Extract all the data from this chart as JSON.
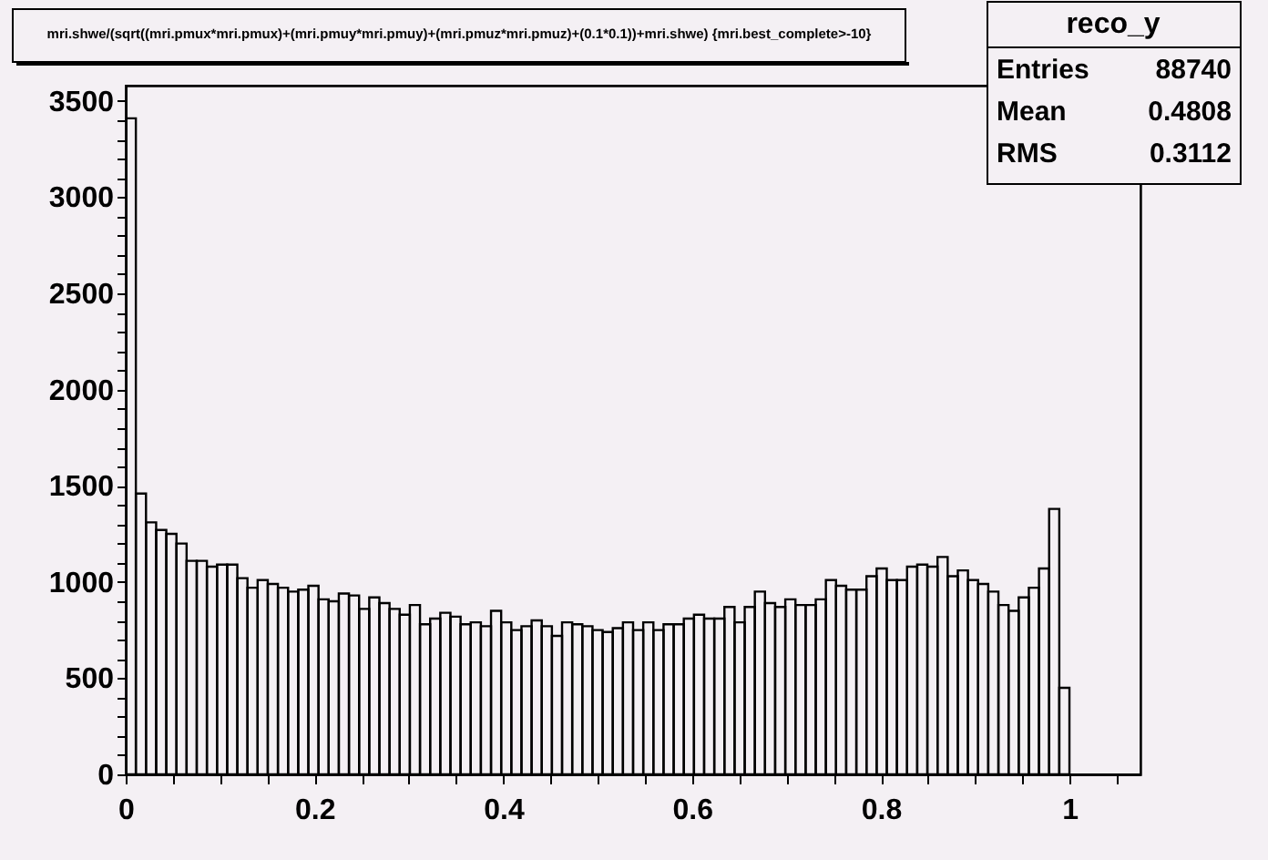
{
  "chart_data": {
    "type": "histogram",
    "title": "mri.shwe/(sqrt((mri.pmux*mri.pmux)+(mri.pmuy*mri.pmuy)+(mri.pmuz*mri.pmuz)+(0.1*0.1))+mri.shwe) {mri.best_complete>-10}",
    "annotations": [
      "reco_y",
      "Entries 88740",
      "Mean 0.4808",
      "RMS 0.3112"
    ],
    "bins": [
      0,
      0.01075,
      0.0215,
      0.03225,
      0.043,
      0.05375,
      0.0645,
      0.07525,
      0.086,
      0.09675,
      0.1075,
      0.11825,
      0.129,
      0.13975,
      0.1505,
      0.16125,
      0.172,
      0.18275,
      0.1935,
      0.20425,
      0.215,
      0.22575,
      0.2365,
      0.24725,
      0.258,
      0.26875,
      0.2795,
      0.29025,
      0.301,
      0.31175,
      0.3225,
      0.33325,
      0.344,
      0.35475,
      0.3655,
      0.37625,
      0.387,
      0.39775,
      0.4085,
      0.41925,
      0.43,
      0.44075,
      0.4515,
      0.46225,
      0.473,
      0.48375,
      0.4945,
      0.50525,
      0.516,
      0.52675,
      0.5375,
      0.54825,
      0.559,
      0.56975,
      0.5805,
      0.59125,
      0.602,
      0.61275,
      0.6235,
      0.63425,
      0.645,
      0.65575,
      0.6665,
      0.67725,
      0.688,
      0.69875,
      0.7095,
      0.72025,
      0.731,
      0.74175,
      0.7525,
      0.76325,
      0.774,
      0.78475,
      0.7955,
      0.80625,
      0.817,
      0.82775,
      0.8385,
      0.84925,
      0.86,
      0.87075,
      0.8815,
      0.89225,
      0.903,
      0.91375,
      0.9245,
      0.93525,
      0.946,
      0.95675,
      0.9675,
      0.97825,
      0.989,
      0.99975
    ],
    "values": [
      3410,
      1460,
      1310,
      1270,
      1250,
      1200,
      1110,
      1110,
      1080,
      1090,
      1090,
      1020,
      970,
      1010,
      990,
      970,
      950,
      960,
      980,
      910,
      900,
      940,
      930,
      860,
      920,
      890,
      860,
      830,
      880,
      780,
      810,
      840,
      820,
      780,
      790,
      770,
      850,
      790,
      750,
      770,
      800,
      770,
      720,
      790,
      780,
      770,
      750,
      740,
      760,
      790,
      750,
      790,
      750,
      780,
      780,
      810,
      830,
      810,
      810,
      870,
      790,
      870,
      950,
      890,
      870,
      910,
      880,
      880,
      910,
      1010,
      980,
      960,
      960,
      1030,
      1070,
      1010,
      1010,
      1080,
      1090,
      1080,
      1130,
      1030,
      1060,
      1010,
      990,
      950,
      880,
      850,
      920,
      970,
      1070,
      1380,
      450
    ],
    "color": "#000000",
    "xlim": [
      0,
      1.075
    ],
    "ylim": [
      0,
      3580
    ],
    "xticks": [
      0,
      {
        "value": 0.05,
        "label": null
      },
      0.2,
      {
        "value": 0.1,
        "label": null
      },
      {
        "value": 0.15,
        "label": null
      },
      {
        "value": 0.25,
        "label": null
      },
      {
        "value": 0.3,
        "label": null
      },
      {
        "value": 0.35,
        "label": null
      },
      0.4,
      {
        "value": 0.45,
        "label": null
      },
      {
        "value": 0.5,
        "label": null
      },
      {
        "value": 0.55,
        "label": null
      },
      0.6,
      {
        "value": 0.65,
        "label": null
      },
      {
        "value": 0.7,
        "label": null
      },
      {
        "value": 0.75,
        "label": null
      },
      0.8,
      {
        "value": 0.85,
        "label": null
      },
      {
        "value": 0.9,
        "label": null
      },
      {
        "value": 0.95,
        "label": null
      },
      1,
      {
        "value": 1.05,
        "label": null
      }
    ],
    "yticks": [
      0,
      500,
      1000,
      1500,
      2000,
      2500,
      3000,
      3500,
      {
        "value": 100,
        "label": null
      },
      {
        "value": 200,
        "label": null
      },
      {
        "value": 300,
        "label": null
      },
      {
        "value": 400,
        "label": null
      },
      {
        "value": 600,
        "label": null
      },
      {
        "value": 700,
        "label": null
      },
      {
        "value": 800,
        "label": null
      },
      {
        "value": 900,
        "label": null
      },
      {
        "value": 1100,
        "label": null
      },
      {
        "value": 1200,
        "label": null
      },
      {
        "value": 1300,
        "label": null
      },
      {
        "value": 1400,
        "label": null
      },
      {
        "value": 1600,
        "label": null
      },
      {
        "value": 1700,
        "label": null
      },
      {
        "value": 1800,
        "label": null
      },
      {
        "value": 1900,
        "label": null
      },
      {
        "value": 2100,
        "label": null
      },
      {
        "value": 2200,
        "label": null
      },
      {
        "value": 2300,
        "label": null
      },
      {
        "value": 2400,
        "label": null
      },
      {
        "value": 2600,
        "label": null
      },
      {
        "value": 2700,
        "label": null
      },
      {
        "value": 2800,
        "label": null
      },
      {
        "value": 2900,
        "label": null
      },
      {
        "value": 3100,
        "label": null
      },
      {
        "value": 3200,
        "label": null
      },
      {
        "value": 3300,
        "label": null
      },
      {
        "value": 3400,
        "label": null
      }
    ],
    "grid": false
  }
}
